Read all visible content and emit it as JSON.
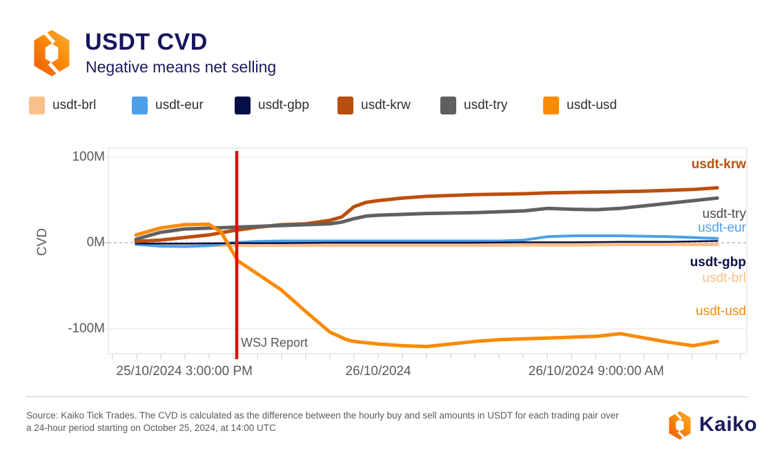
{
  "header": {
    "title": "USDT CVD",
    "subtitle": "Negative means net selling"
  },
  "legend": [
    {
      "label": "usdt-brl",
      "color": "#F9C08C"
    },
    {
      "label": "usdt-eur",
      "color": "#4D9FE8"
    },
    {
      "label": "usdt-gbp",
      "color": "#050E45"
    },
    {
      "label": "usdt-krw",
      "color": "#B84E0B"
    },
    {
      "label": "usdt-try",
      "color": "#5F5F5F"
    },
    {
      "label": "usdt-usd",
      "color": "#FB8B06"
    }
  ],
  "chart_data": {
    "type": "line",
    "title": "USDT CVD",
    "subtitle": "Negative means net selling",
    "ylabel": "CVD",
    "y_ticks": [
      "100M",
      "0M",
      "-100M"
    ],
    "y_tick_values": [
      100,
      0,
      -100
    ],
    "ylim": [
      -129,
      110
    ],
    "x_unit": "hours since 2024-10-25 14:00 UTC",
    "x_ticks": [
      {
        "label": "25/10/2024 3:00:00 PM",
        "h": 2
      },
      {
        "label": "26/10/2024",
        "h": 10
      },
      {
        "label": "26/10/2024 9:00:00 AM",
        "h": 19
      }
    ],
    "grid": true,
    "legend_position": "top",
    "annotation": {
      "label": "WSJ Report",
      "h": 4.16,
      "color": "#F40000"
    },
    "series": [
      {
        "name": "usdt-brl",
        "color": "#F9C08C",
        "width": 5,
        "points": [
          [
            0,
            -1.5
          ],
          [
            1,
            -2
          ],
          [
            2,
            -2.5
          ],
          [
            4,
            -3
          ],
          [
            6,
            -3
          ],
          [
            8,
            -3
          ],
          [
            10,
            -3
          ],
          [
            12,
            -3
          ],
          [
            14,
            -3
          ],
          [
            16,
            -2.5
          ],
          [
            18,
            -2.5
          ],
          [
            20,
            -2
          ],
          [
            22,
            -2
          ],
          [
            24,
            -2
          ]
        ]
      },
      {
        "name": "usdt-eur",
        "color": "#4D9FE8",
        "width": 4,
        "points": [
          [
            0,
            -2
          ],
          [
            1,
            -4
          ],
          [
            2,
            -4.5
          ],
          [
            3,
            -3.5
          ],
          [
            4,
            0
          ],
          [
            5,
            1.5
          ],
          [
            6,
            2
          ],
          [
            8,
            2
          ],
          [
            10,
            2
          ],
          [
            12,
            2
          ],
          [
            14,
            2
          ],
          [
            15,
            2
          ],
          [
            16,
            3
          ],
          [
            17,
            7
          ],
          [
            18,
            8
          ],
          [
            19,
            8
          ],
          [
            20,
            8
          ],
          [
            21,
            7.5
          ],
          [
            22,
            7
          ],
          [
            23,
            6
          ],
          [
            24,
            5
          ]
        ]
      },
      {
        "name": "usdt-gbp",
        "color": "#0A1045",
        "width": 2.5,
        "points": [
          [
            0,
            -1
          ],
          [
            2,
            -1
          ],
          [
            4,
            -0.5
          ],
          [
            6,
            -0.5
          ],
          [
            8,
            0
          ],
          [
            10,
            0
          ],
          [
            12,
            0
          ],
          [
            14,
            0
          ],
          [
            16,
            0.5
          ],
          [
            18,
            0.5
          ],
          [
            20,
            1
          ],
          [
            22,
            1
          ],
          [
            23,
            1.5
          ],
          [
            24,
            2
          ]
        ]
      },
      {
        "name": "usdt-krw",
        "color": "#BC4F0B",
        "width": 5,
        "points": [
          [
            0,
            1.5
          ],
          [
            1,
            3
          ],
          [
            2,
            6
          ],
          [
            3,
            9
          ],
          [
            4,
            14
          ],
          [
            5,
            18
          ],
          [
            6,
            21
          ],
          [
            7,
            22
          ],
          [
            8,
            26
          ],
          [
            8.5,
            30
          ],
          [
            9,
            42
          ],
          [
            9.5,
            47
          ],
          [
            10,
            49
          ],
          [
            11,
            52
          ],
          [
            12,
            54
          ],
          [
            13,
            55
          ],
          [
            14,
            56
          ],
          [
            15,
            56.5
          ],
          [
            16,
            57
          ],
          [
            17,
            58
          ],
          [
            18,
            58.5
          ],
          [
            19,
            59
          ],
          [
            20,
            59.5
          ],
          [
            21,
            60
          ],
          [
            22,
            61
          ],
          [
            23,
            62
          ],
          [
            24,
            64
          ]
        ]
      },
      {
        "name": "usdt-try",
        "color": "#606060",
        "width": 5,
        "points": [
          [
            0,
            4
          ],
          [
            1,
            12
          ],
          [
            2,
            16
          ],
          [
            3,
            17
          ],
          [
            4,
            18
          ],
          [
            5,
            19
          ],
          [
            6,
            20
          ],
          [
            7,
            21
          ],
          [
            8,
            22
          ],
          [
            8.5,
            24
          ],
          [
            9,
            28
          ],
          [
            9.5,
            31
          ],
          [
            10,
            32
          ],
          [
            11,
            33
          ],
          [
            12,
            34
          ],
          [
            13,
            34.5
          ],
          [
            14,
            35
          ],
          [
            15,
            36
          ],
          [
            16,
            37
          ],
          [
            17,
            40
          ],
          [
            18,
            39
          ],
          [
            19,
            38.5
          ],
          [
            20,
            40
          ],
          [
            21,
            43
          ],
          [
            22,
            46
          ],
          [
            23,
            49
          ],
          [
            24,
            52
          ]
        ]
      },
      {
        "name": "usdt-usd",
        "color": "#F98A05",
        "width": 5,
        "points": [
          [
            0,
            9
          ],
          [
            1,
            17
          ],
          [
            2,
            21
          ],
          [
            3,
            21.5
          ],
          [
            3.5,
            13
          ],
          [
            4.2,
            -21
          ],
          [
            5,
            -36
          ],
          [
            6,
            -55
          ],
          [
            7,
            -80
          ],
          [
            8,
            -104
          ],
          [
            8.7,
            -113
          ],
          [
            9,
            -115
          ],
          [
            10,
            -118
          ],
          [
            11,
            -120
          ],
          [
            12,
            -121
          ],
          [
            13,
            -118
          ],
          [
            14,
            -115
          ],
          [
            15,
            -113
          ],
          [
            16,
            -112
          ],
          [
            17,
            -111
          ],
          [
            18,
            -110
          ],
          [
            19,
            -109
          ],
          [
            20,
            -106
          ],
          [
            21,
            -111
          ],
          [
            22,
            -116
          ],
          [
            23,
            -120
          ],
          [
            24,
            -115
          ]
        ]
      }
    ],
    "end_labels": [
      {
        "label": "usdt-krw",
        "color": "#BC4F0B",
        "value_at_label": 91,
        "bold": true
      },
      {
        "label": "usdt-try",
        "color": "#4A4A4A",
        "value_at_label": 33,
        "bold": false
      },
      {
        "label": "usdt-eur",
        "color": "#4D9FE8",
        "value_at_label": 17,
        "bold": false
      },
      {
        "label": "usdt-gbp",
        "color": "#0A1045",
        "value_at_label": -23,
        "bold": true
      },
      {
        "label": "usdt-brl",
        "color": "#F9C08C",
        "value_at_label": -42,
        "bold": false
      },
      {
        "label": "usdt-usd",
        "color": "#F98A05",
        "value_at_label": -80,
        "bold": false
      }
    ]
  },
  "footer": {
    "source_line1": "Source: Kaiko Tick Trades. The CVD is calculated as the difference between the hourly buy and sell amounts in USDT for each trading pair over",
    "source_line2": "a 24-hour period starting on October 25, 2024, at 14:00 UTC",
    "brand": "Kaiko"
  }
}
